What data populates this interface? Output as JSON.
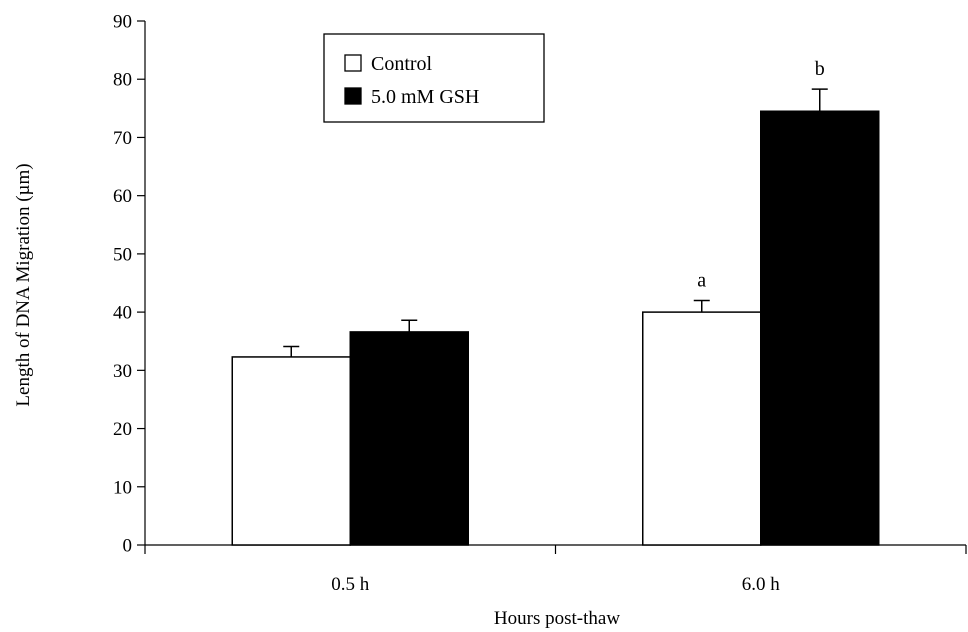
{
  "chart_data": {
    "type": "bar",
    "title": "",
    "xlabel": "Hours post-thaw",
    "ylabel": "Length of DNA Migration (µm)",
    "ylim": [
      0,
      90
    ],
    "yticks": [
      0,
      10,
      20,
      30,
      40,
      50,
      60,
      70,
      80,
      90
    ],
    "categories": [
      "0.5 h",
      "6.0 h"
    ],
    "series": [
      {
        "name": "Control",
        "color": "#ffffff",
        "values": [
          32.3,
          40.0
        ],
        "errors": [
          1.8,
          2.0
        ],
        "annotations": [
          "",
          "a"
        ]
      },
      {
        "name": "5.0 mM GSH",
        "color": "#000000",
        "values": [
          36.6,
          74.5
        ],
        "errors": [
          2.0,
          3.8
        ],
        "annotations": [
          "",
          "b"
        ]
      }
    ],
    "legend_position": "top-left",
    "grid": false
  }
}
